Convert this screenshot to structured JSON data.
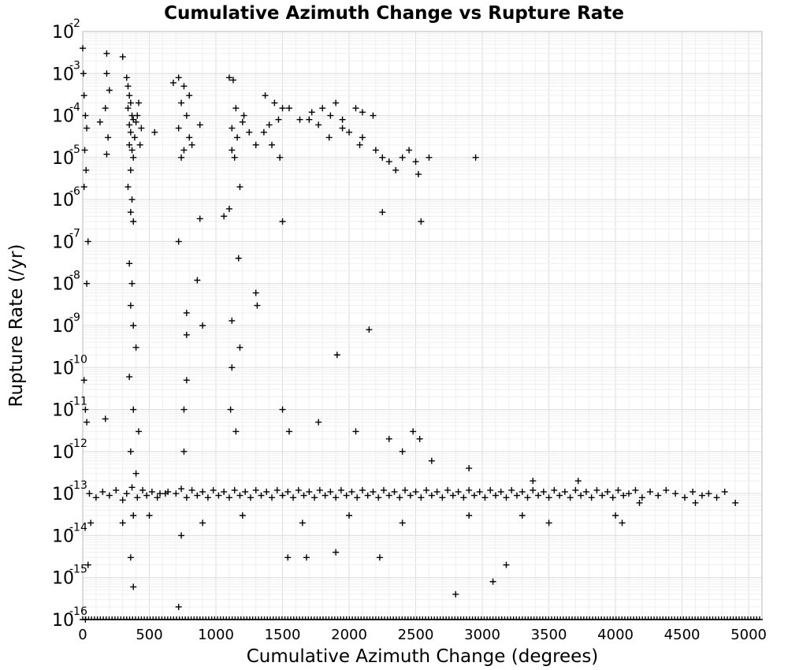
{
  "chart_data": {
    "type": "scatter",
    "title": "Cumulative Azimuth Change vs Rupture Rate",
    "xlabel": "Cumulative Azimuth Change (degrees)",
    "ylabel": "Rupture Rate (/yr)",
    "xlim": [
      0,
      5100
    ],
    "ylim": [
      1e-16,
      0.01
    ],
    "y_scale": "log",
    "grid": true,
    "legend": "none",
    "marker": "plus",
    "marker_color": "#000000",
    "x_ticks": [
      "0",
      "500",
      "1000",
      "1500",
      "2000",
      "2500",
      "3000",
      "3500",
      "4000",
      "4500",
      "5000"
    ],
    "y_ticks": [
      {
        "base": "10",
        "exp": "-2"
      },
      {
        "base": "10",
        "exp": "-3"
      },
      {
        "base": "10",
        "exp": "-4"
      },
      {
        "base": "10",
        "exp": "-5"
      },
      {
        "base": "10",
        "exp": "-6"
      },
      {
        "base": "10",
        "exp": "-7"
      },
      {
        "base": "10",
        "exp": "-8"
      },
      {
        "base": "10",
        "exp": "-9"
      },
      {
        "base": "10",
        "exp": "-10"
      },
      {
        "base": "10",
        "exp": "-11"
      },
      {
        "base": "10",
        "exp": "-12"
      },
      {
        "base": "10",
        "exp": "-13"
      },
      {
        "base": "10",
        "exp": "-14"
      },
      {
        "base": "10",
        "exp": "-15"
      },
      {
        "base": "10",
        "exp": "-16"
      }
    ],
    "points": [
      [
        0,
        0.004
      ],
      [
        5,
        0.001
      ],
      [
        10,
        0.0003
      ],
      [
        20,
        0.0001
      ],
      [
        30,
        5e-05
      ],
      [
        15,
        1.5e-05
      ],
      [
        25,
        5e-06
      ],
      [
        10,
        2e-06
      ],
      [
        40,
        1e-07
      ],
      [
        30,
        1e-08
      ],
      [
        10,
        5e-11
      ],
      [
        20,
        1e-11
      ],
      [
        30,
        5e-12
      ],
      [
        60,
        2e-14
      ],
      [
        40,
        2e-15
      ],
      [
        20,
        1e-16
      ],
      [
        180,
        0.003
      ],
      [
        180,
        0.001
      ],
      [
        200,
        0.0004
      ],
      [
        170,
        0.00015
      ],
      [
        130,
        7e-05
      ],
      [
        190,
        3e-05
      ],
      [
        180,
        1.2e-05
      ],
      [
        170,
        6e-12
      ],
      [
        300,
        0.0025
      ],
      [
        330,
        0.0008
      ],
      [
        340,
        0.0005
      ],
      [
        350,
        0.0003
      ],
      [
        360,
        0.0002
      ],
      [
        340,
        0.00015
      ],
      [
        370,
        0.0001
      ],
      [
        380,
        8e-05
      ],
      [
        350,
        6e-05
      ],
      [
        360,
        4e-05
      ],
      [
        390,
        3e-05
      ],
      [
        350,
        2e-05
      ],
      [
        370,
        1.5e-05
      ],
      [
        380,
        1e-05
      ],
      [
        360,
        5e-06
      ],
      [
        340,
        2e-06
      ],
      [
        370,
        1e-06
      ],
      [
        360,
        5e-07
      ],
      [
        380,
        3e-07
      ],
      [
        350,
        3e-08
      ],
      [
        370,
        1e-08
      ],
      [
        360,
        3e-09
      ],
      [
        380,
        1e-09
      ],
      [
        400,
        3e-10
      ],
      [
        350,
        6e-11
      ],
      [
        380,
        1e-11
      ],
      [
        420,
        3e-12
      ],
      [
        360,
        1e-12
      ],
      [
        400,
        3e-13
      ],
      [
        380,
        3e-14
      ],
      [
        360,
        3e-15
      ],
      [
        380,
        6e-16
      ],
      [
        420,
        0.0002
      ],
      [
        440,
        5e-05
      ],
      [
        430,
        2e-05
      ],
      [
        410,
        0.0001
      ],
      [
        400,
        7e-05
      ],
      [
        540,
        4e-05
      ],
      [
        580,
        1e-13
      ],
      [
        620,
        1e-13
      ],
      [
        680,
        0.0006
      ],
      [
        720,
        0.0008
      ],
      [
        760,
        0.0005
      ],
      [
        800,
        0.0003
      ],
      [
        740,
        0.0002
      ],
      [
        780,
        0.0001
      ],
      [
        720,
        5e-05
      ],
      [
        800,
        3e-05
      ],
      [
        760,
        1.5e-05
      ],
      [
        740,
        1e-05
      ],
      [
        820,
        2e-05
      ],
      [
        880,
        6e-05
      ],
      [
        880,
        3.5e-07
      ],
      [
        720,
        1e-07
      ],
      [
        860,
        1.2e-08
      ],
      [
        780,
        2e-09
      ],
      [
        780,
        6e-10
      ],
      [
        900,
        1e-09
      ],
      [
        780,
        5e-11
      ],
      [
        760,
        1e-11
      ],
      [
        760,
        1e-12
      ],
      [
        740,
        1e-14
      ],
      [
        720,
        2e-16
      ],
      [
        1100,
        0.0008
      ],
      [
        1130,
        0.0007
      ],
      [
        1150,
        0.00015
      ],
      [
        1210,
        0.0001
      ],
      [
        1120,
        5e-05
      ],
      [
        1160,
        3e-05
      ],
      [
        1120,
        1.5e-05
      ],
      [
        1200,
        7e-05
      ],
      [
        1250,
        4e-05
      ],
      [
        1300,
        2e-05
      ],
      [
        1140,
        1e-05
      ],
      [
        1180,
        2e-06
      ],
      [
        1060,
        4e-07
      ],
      [
        1100,
        6e-07
      ],
      [
        1170,
        4e-08
      ],
      [
        1300,
        6e-09
      ],
      [
        1310,
        3e-09
      ],
      [
        1120,
        1.3e-09
      ],
      [
        1180,
        3e-10
      ],
      [
        1120,
        1e-10
      ],
      [
        1110,
        1e-11
      ],
      [
        1150,
        3e-12
      ],
      [
        1370,
        0.0003
      ],
      [
        1440,
        0.0002
      ],
      [
        1500,
        0.00015
      ],
      [
        1470,
        8e-05
      ],
      [
        1400,
        6e-05
      ],
      [
        1360,
        4e-05
      ],
      [
        1420,
        2e-05
      ],
      [
        1480,
        1e-05
      ],
      [
        1550,
        0.00015
      ],
      [
        1630,
        8e-05
      ],
      [
        1720,
        0.00012
      ],
      [
        1800,
        0.00015
      ],
      [
        1860,
        0.0001
      ],
      [
        1900,
        0.0002
      ],
      [
        1950,
        8e-05
      ],
      [
        2050,
        0.00015
      ],
      [
        2100,
        0.00012
      ],
      [
        2180,
        0.0001
      ],
      [
        1500,
        3e-07
      ],
      [
        1500,
        1e-11
      ],
      [
        1550,
        3e-12
      ],
      [
        1700,
        8e-05
      ],
      [
        1770,
        6e-05
      ],
      [
        1850,
        3e-05
      ],
      [
        1950,
        5e-05
      ],
      [
        2000,
        4e-05
      ],
      [
        2100,
        3e-05
      ],
      [
        2080,
        2e-05
      ],
      [
        2200,
        1.5e-05
      ],
      [
        2250,
        1e-05
      ],
      [
        2300,
        8e-06
      ],
      [
        2350,
        5e-06
      ],
      [
        2400,
        1e-05
      ],
      [
        2450,
        1.5e-05
      ],
      [
        2500,
        8e-06
      ],
      [
        2520,
        4e-06
      ],
      [
        2600,
        1e-05
      ],
      [
        2950,
        1e-05
      ],
      [
        2250,
        5e-07
      ],
      [
        2540,
        3e-07
      ],
      [
        2150,
        8e-10
      ],
      [
        1910,
        2e-10
      ],
      [
        2400,
        1e-12
      ],
      [
        2300,
        2e-12
      ],
      [
        2800,
        4e-16
      ],
      [
        3080,
        8e-16
      ],
      [
        3180,
        2e-15
      ],
      [
        3300,
        3e-14
      ],
      [
        50,
        1e-13
      ],
      [
        100,
        8e-14
      ],
      [
        150,
        1.1e-13
      ],
      [
        200,
        9e-14
      ],
      [
        250,
        1.2e-13
      ],
      [
        300,
        7e-14
      ],
      [
        330,
        1e-13
      ],
      [
        370,
        1.4e-13
      ],
      [
        410,
        8e-14
      ],
      [
        450,
        1.2e-13
      ],
      [
        480,
        9e-14
      ],
      [
        520,
        1.1e-13
      ],
      [
        560,
        8e-14
      ],
      [
        640,
        1.1e-13
      ],
      [
        700,
        1e-13
      ],
      [
        740,
        1.3e-13
      ],
      [
        780,
        8e-14
      ],
      [
        820,
        1.2e-13
      ],
      [
        860,
        9e-14
      ],
      [
        900,
        1.1e-13
      ],
      [
        940,
        8e-14
      ],
      [
        980,
        1.2e-13
      ],
      [
        1020,
        9e-14
      ],
      [
        1060,
        1.1e-13
      ],
      [
        1100,
        8e-14
      ],
      [
        1140,
        1.2e-13
      ],
      [
        1180,
        9e-14
      ],
      [
        1220,
        1.1e-13
      ],
      [
        1260,
        8e-14
      ],
      [
        1300,
        1.2e-13
      ],
      [
        1340,
        9e-14
      ],
      [
        1380,
        1.1e-13
      ],
      [
        1420,
        8e-14
      ],
      [
        1460,
        1.2e-13
      ],
      [
        1500,
        9e-14
      ],
      [
        1540,
        1.1e-13
      ],
      [
        1580,
        8e-14
      ],
      [
        1620,
        1.2e-13
      ],
      [
        1660,
        9e-14
      ],
      [
        1700,
        1.1e-13
      ],
      [
        1740,
        8e-14
      ],
      [
        1780,
        1.2e-13
      ],
      [
        1820,
        9e-14
      ],
      [
        1860,
        1.1e-13
      ],
      [
        1900,
        8e-14
      ],
      [
        1940,
        1.2e-13
      ],
      [
        1980,
        9e-14
      ],
      [
        2020,
        1.1e-13
      ],
      [
        2060,
        8e-14
      ],
      [
        2100,
        1.2e-13
      ],
      [
        2140,
        9e-14
      ],
      [
        2180,
        1.1e-13
      ],
      [
        2220,
        8e-14
      ],
      [
        2260,
        1.2e-13
      ],
      [
        2300,
        9e-14
      ],
      [
        2340,
        1.1e-13
      ],
      [
        2380,
        8e-14
      ],
      [
        2420,
        1.2e-13
      ],
      [
        2460,
        9e-14
      ],
      [
        2500,
        1.1e-13
      ],
      [
        2540,
        8e-14
      ],
      [
        2580,
        1.2e-13
      ],
      [
        2620,
        9e-14
      ],
      [
        2660,
        1.1e-13
      ],
      [
        2700,
        8e-14
      ],
      [
        2740,
        1.2e-13
      ],
      [
        2780,
        9e-14
      ],
      [
        2820,
        1.1e-13
      ],
      [
        2860,
        8e-14
      ],
      [
        2900,
        1.2e-13
      ],
      [
        2940,
        9e-14
      ],
      [
        2980,
        1.1e-13
      ],
      [
        3020,
        8e-14
      ],
      [
        3060,
        1.2e-13
      ],
      [
        3100,
        9e-14
      ],
      [
        3140,
        1.1e-13
      ],
      [
        3180,
        8e-14
      ],
      [
        3220,
        1.2e-13
      ],
      [
        3260,
        9e-14
      ],
      [
        3300,
        1.1e-13
      ],
      [
        3340,
        8e-14
      ],
      [
        3380,
        1.2e-13
      ],
      [
        3420,
        9e-14
      ],
      [
        3460,
        1.1e-13
      ],
      [
        3500,
        8e-14
      ],
      [
        3540,
        1.2e-13
      ],
      [
        3580,
        9e-14
      ],
      [
        3620,
        1.1e-13
      ],
      [
        3660,
        8e-14
      ],
      [
        3700,
        1.2e-13
      ],
      [
        3740,
        9e-14
      ],
      [
        3780,
        1.1e-13
      ],
      [
        3820,
        8e-14
      ],
      [
        3860,
        1.2e-13
      ],
      [
        3900,
        9e-14
      ],
      [
        3940,
        1.1e-13
      ],
      [
        3980,
        8e-14
      ],
      [
        4020,
        1.2e-13
      ],
      [
        4060,
        9e-14
      ],
      [
        4100,
        1e-13
      ],
      [
        4150,
        1.2e-13
      ],
      [
        4200,
        8e-14
      ],
      [
        4260,
        1.1e-13
      ],
      [
        4320,
        9e-14
      ],
      [
        4380,
        1.2e-13
      ],
      [
        4450,
        1e-13
      ],
      [
        4520,
        8e-14
      ],
      [
        4580,
        1.1e-13
      ],
      [
        4650,
        9e-14
      ],
      [
        4700,
        1e-13
      ],
      [
        4760,
        8e-14
      ],
      [
        4820,
        1.1e-13
      ],
      [
        300,
        2e-14
      ],
      [
        500,
        3e-14
      ],
      [
        900,
        2e-14
      ],
      [
        1200,
        3e-14
      ],
      [
        1650,
        2e-14
      ],
      [
        2000,
        3e-14
      ],
      [
        2400,
        2e-14
      ],
      [
        2900,
        3e-14
      ],
      [
        3500,
        2e-14
      ],
      [
        4000,
        3e-14
      ],
      [
        4050,
        2e-14
      ],
      [
        4180,
        6e-14
      ],
      [
        4600,
        6e-14
      ],
      [
        4900,
        6e-14
      ],
      [
        1540,
        3e-15
      ],
      [
        1680,
        3e-15
      ],
      [
        1900,
        4e-15
      ],
      [
        2230,
        3e-15
      ],
      [
        1770,
        5e-12
      ],
      [
        2050,
        3e-12
      ],
      [
        2480,
        3e-12
      ],
      [
        2530,
        2e-12
      ],
      [
        2620,
        6e-13
      ],
      [
        2900,
        4e-13
      ],
      [
        3380,
        2e-13
      ],
      [
        3720,
        2e-13
      ]
    ],
    "floor_band": {
      "x_start": 0,
      "x_end": 5100,
      "y": 1e-16
    }
  }
}
